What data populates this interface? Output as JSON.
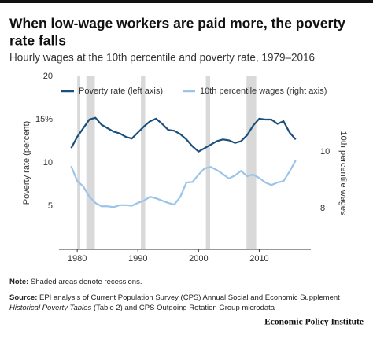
{
  "chart_data": {
    "type": "line",
    "title": "When low-wage workers are paid more, the poverty rate falls",
    "subtitle": "Hourly wages at the 10th percentile and poverty rate, 1979–2016",
    "y_label": "Poverty rate (percent)",
    "y2_label": "10th percentile wages",
    "x": [
      1979,
      1980,
      1981,
      1982,
      1983,
      1984,
      1985,
      1986,
      1987,
      1988,
      1989,
      1990,
      1991,
      1992,
      1993,
      1994,
      1995,
      1996,
      1997,
      1998,
      1999,
      2000,
      2001,
      2002,
      2003,
      2004,
      2005,
      2006,
      2007,
      2008,
      2009,
      2010,
      2011,
      2012,
      2013,
      2014,
      2015,
      2016
    ],
    "series": [
      {
        "name": "Poverty rate (left axis)",
        "color": "#1b4f7c",
        "values": [
          11.7,
          13.0,
          14.0,
          15.0,
          15.2,
          14.4,
          14.0,
          13.6,
          13.4,
          13.0,
          12.8,
          13.5,
          14.2,
          14.8,
          15.1,
          14.5,
          13.8,
          13.7,
          13.3,
          12.7,
          11.9,
          11.3,
          11.7,
          12.1,
          12.5,
          12.7,
          12.6,
          12.3,
          12.5,
          13.2,
          14.3,
          15.1,
          15.0,
          15.0,
          14.5,
          14.8,
          13.5,
          12.7
        ]
      },
      {
        "name": "10th percentile wages (right axis)",
        "color": "#9cc4e8",
        "axis": "y2",
        "values": [
          9.5,
          8.97,
          8.78,
          8.42,
          8.2,
          8.08,
          8.08,
          8.05,
          8.12,
          8.12,
          8.1,
          8.2,
          8.28,
          8.42,
          8.36,
          8.28,
          8.2,
          8.14,
          8.42,
          8.92,
          8.94,
          9.2,
          9.42,
          9.47,
          9.36,
          9.22,
          9.06,
          9.17,
          9.33,
          9.14,
          9.2,
          9.08,
          8.92,
          8.83,
          8.92,
          8.97,
          9.31,
          9.7
        ]
      }
    ],
    "recessions": [
      [
        1980.0,
        1980.5
      ],
      [
        1981.5,
        1982.9
      ],
      [
        1990.5,
        1991.2
      ],
      [
        2001.2,
        2001.9
      ],
      [
        2007.9,
        2009.5
      ]
    ],
    "recession_color": "#d9d9d9",
    "xlim": [
      1977,
      2018.5
    ],
    "xticks": [
      1980,
      1990,
      2000,
      2010
    ],
    "ylim": [
      0,
      20
    ],
    "yticks": [
      5,
      10,
      {
        "value": 15,
        "label": "15%"
      },
      20
    ],
    "y2lim": [
      6.56,
      12.67
    ],
    "y2ticks": [
      8,
      10
    ],
    "grid": false,
    "note_label": "Note:",
    "note": " Shaded areas denote recessions.",
    "source_label": "Source:",
    "source": " EPI analysis of Current Population Survey (CPS) Annual Social and Economic Supplement ",
    "source_italic": "Historical Poverty Tables",
    "source_end": " (Table 2) and CPS Outgoing Rotation Group microdata",
    "brand": "Economic Policy Institute"
  }
}
